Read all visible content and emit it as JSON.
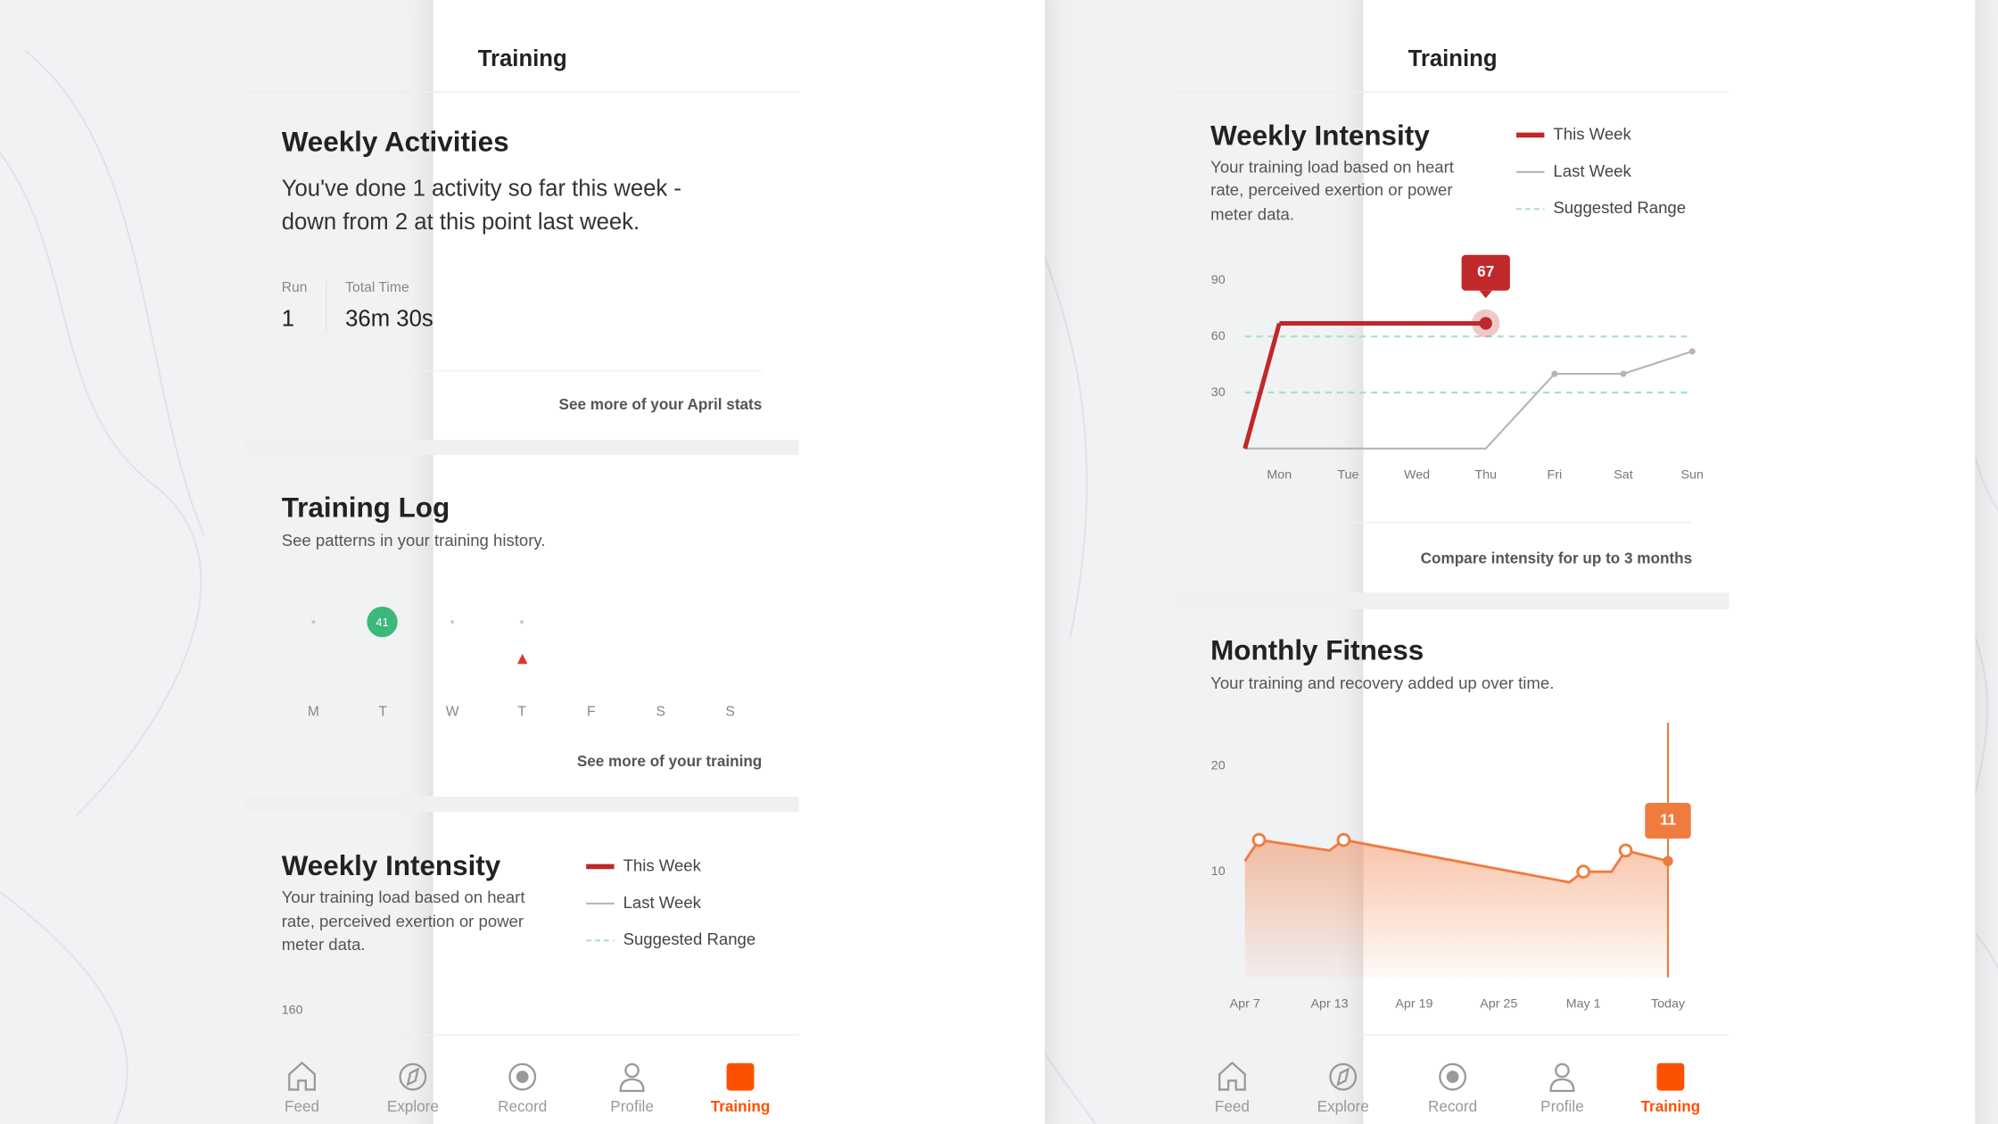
{
  "left_phone": {
    "header": "Training",
    "weekly_activities": {
      "title": "Weekly Activities",
      "text": [
        "You've done 1 activity so far this week -",
        "down from 2 at this point last week."
      ],
      "stats": [
        {
          "label": "Run",
          "value": "1"
        },
        {
          "label": "Total Time",
          "value": "36m 30s"
        }
      ],
      "link": "See more of your April stats"
    },
    "training_log": {
      "title": "Training Log",
      "subtitle": "See patterns in your training history.",
      "badge": "41",
      "days": [
        "M",
        "T",
        "W",
        "T",
        "F",
        "S",
        "S"
      ],
      "link": "See more of your training"
    },
    "weekly_intensity": {
      "title": "Weekly Intensity",
      "subtitle": [
        "Your training load based on heart",
        "rate, perceived exertion or power",
        "meter data."
      ],
      "legend": [
        "This Week",
        "Last Week",
        "Suggested Range"
      ],
      "ytick": "160"
    },
    "nav": [
      "Feed",
      "Explore",
      "Record",
      "Profile",
      "Training"
    ]
  },
  "right_phone": {
    "header": "Training",
    "weekly_intensity": {
      "type": "line",
      "title": "Weekly Intensity",
      "subtitle": [
        "Your training load based on heart",
        "rate, perceived exertion or power",
        "meter data."
      ],
      "categories": [
        "Mon",
        "Tue",
        "Wed",
        "Thu",
        "Fri",
        "Sat",
        "Sun"
      ],
      "series": [
        {
          "name": "This Week",
          "color": "#c0282a",
          "values": [
            67,
            67,
            67,
            67,
            null,
            null,
            null
          ]
        },
        {
          "name": "Last Week",
          "color": "#b5b5b5",
          "values": [
            0,
            0,
            0,
            0,
            40,
            40,
            52
          ]
        }
      ],
      "suggested_range_name": "Suggested Range",
      "suggested_range_color": "#a8e0c8",
      "suggested_range": [
        30,
        60
      ],
      "ylim": [
        0,
        90
      ],
      "yticks": [
        30,
        60,
        90
      ],
      "link": "Compare intensity for up to 3 months"
    },
    "monthly_fitness": {
      "type": "area",
      "title": "Monthly Fitness",
      "subtitle": "Your training and recovery added up over time.",
      "x": [
        0,
        1,
        6,
        7,
        23,
        24,
        26,
        27,
        30
      ],
      "values": [
        11,
        13,
        12,
        13,
        9,
        10,
        10,
        12,
        11
      ],
      "color": "#f07b3f",
      "xlim": [
        0,
        30
      ],
      "xticks": [
        {
          "value": 0,
          "label": "Apr 7"
        },
        {
          "value": 6,
          "label": "Apr 13"
        },
        {
          "value": 12,
          "label": "Apr 19"
        },
        {
          "value": 18,
          "label": "Apr 25"
        },
        {
          "value": 24,
          "label": "May 1"
        },
        {
          "value": 30,
          "label": "Today"
        }
      ],
      "ylim": [
        0,
        20
      ],
      "yticks": [
        10,
        20
      ]
    },
    "nav": [
      "Feed",
      "Explore",
      "Record",
      "Profile",
      "Training"
    ]
  }
}
